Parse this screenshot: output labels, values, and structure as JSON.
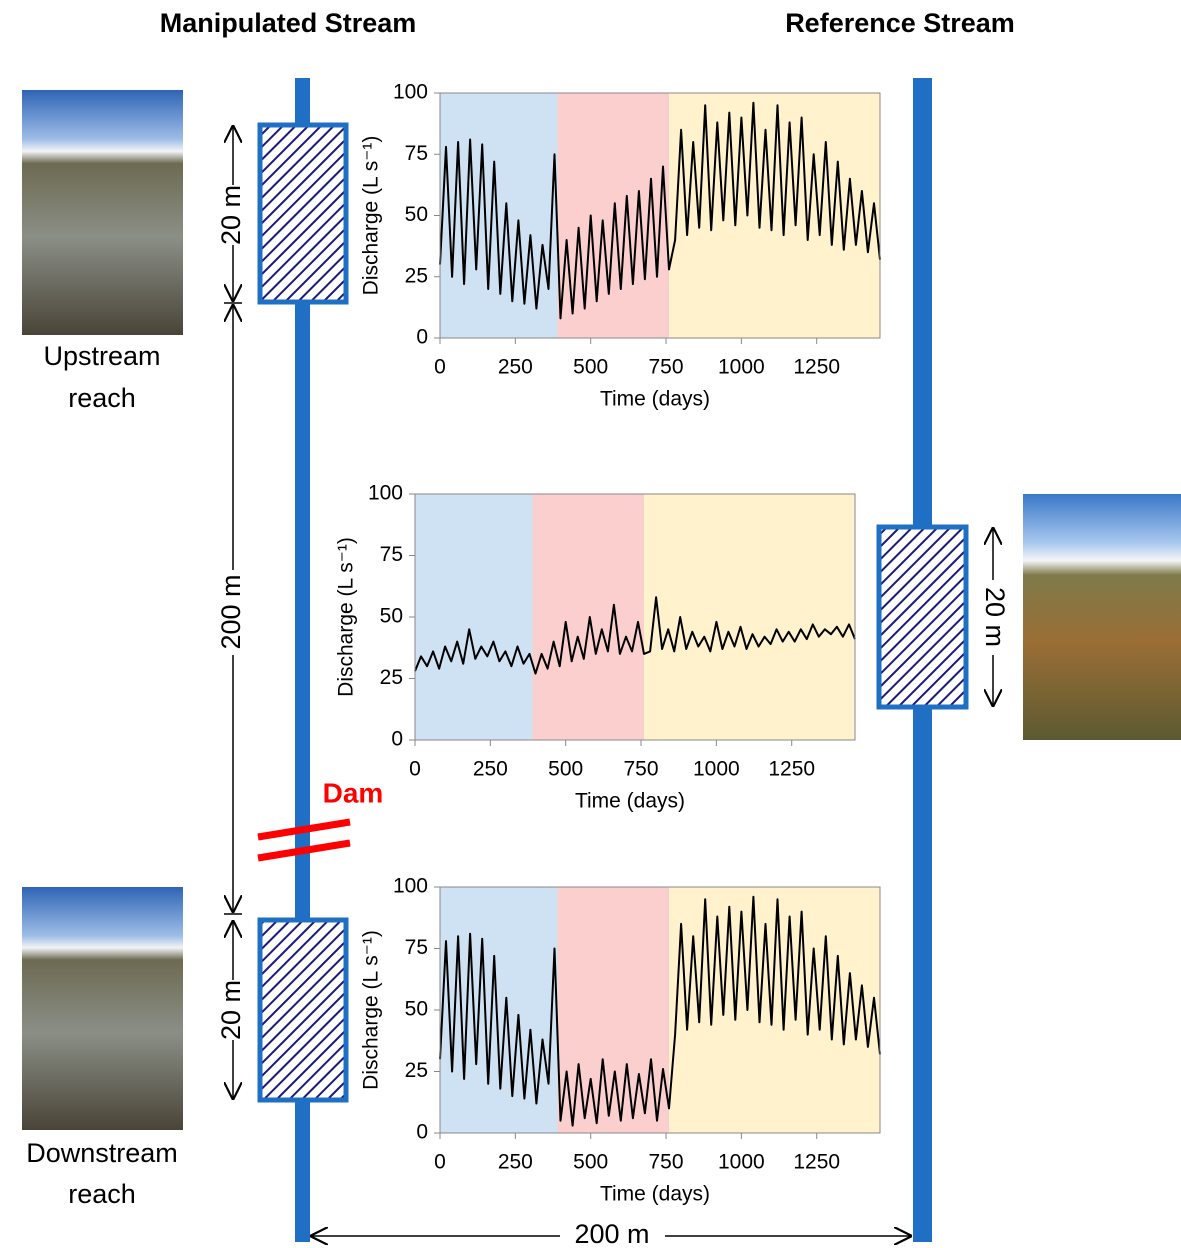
{
  "diagram": {
    "left_heading": "Manipulated Stream",
    "right_heading": "Reference Stream",
    "upstream_label": [
      "Upstream",
      "reach"
    ],
    "downstream_label": [
      "Downstream",
      "reach"
    ],
    "dam_label": "Dam",
    "dimensions": [
      "20 m",
      "200 m",
      "20 m",
      "20 m",
      "200 m"
    ]
  },
  "chart_data": [
    {
      "type": "line",
      "xlabel": "Time (days)",
      "ylabel": "Discharge (L s⁻¹)",
      "xlim": [
        0,
        1460
      ],
      "xticks": [
        0,
        250,
        500,
        750,
        1000,
        1250
      ],
      "ylim": [
        0,
        100
      ],
      "yticks": [
        0,
        25,
        50,
        75,
        100
      ],
      "spans": [
        {
          "start": 0,
          "end": 390,
          "color": "#cfe2f3"
        },
        {
          "start": 390,
          "end": 760,
          "color": "#fccfcf"
        },
        {
          "start": 760,
          "end": 1460,
          "color": "#fff2cc"
        }
      ],
      "x": [
        0,
        20,
        40,
        60,
        80,
        100,
        120,
        140,
        160,
        180,
        200,
        220,
        240,
        260,
        280,
        300,
        320,
        340,
        360,
        380,
        400,
        420,
        440,
        460,
        480,
        500,
        520,
        540,
        560,
        580,
        600,
        620,
        640,
        660,
        680,
        700,
        720,
        740,
        760,
        780,
        800,
        820,
        840,
        860,
        880,
        900,
        920,
        940,
        960,
        980,
        1000,
        1020,
        1040,
        1060,
        1080,
        1100,
        1120,
        1140,
        1160,
        1180,
        1200,
        1220,
        1240,
        1260,
        1280,
        1300,
        1320,
        1340,
        1360,
        1380,
        1400,
        1420,
        1440,
        1460
      ],
      "series": [
        {
          "color": "#000000",
          "values": [
            30,
            78,
            25,
            80,
            22,
            81,
            28,
            79,
            20,
            72,
            18,
            55,
            15,
            48,
            14,
            42,
            12,
            38,
            20,
            75,
            8,
            40,
            10,
            45,
            12,
            50,
            15,
            48,
            18,
            55,
            20,
            58,
            22,
            60,
            24,
            65,
            25,
            70,
            28,
            40,
            85,
            42,
            80,
            45,
            95,
            44,
            88,
            48,
            92,
            46,
            90,
            50,
            96,
            45,
            85,
            44,
            95,
            42,
            88,
            46,
            90,
            40,
            75,
            42,
            80,
            38,
            72,
            36,
            65,
            38,
            60,
            35,
            55,
            32
          ]
        }
      ]
    },
    {
      "type": "line",
      "xlabel": "Time (days)",
      "ylabel": "Discharge (L s⁻¹)",
      "xlim": [
        0,
        1460
      ],
      "xticks": [
        0,
        250,
        500,
        750,
        1000,
        1250
      ],
      "ylim": [
        0,
        100
      ],
      "yticks": [
        0,
        25,
        50,
        75,
        100
      ],
      "spans": [
        {
          "start": 0,
          "end": 390,
          "color": "#cfe2f3"
        },
        {
          "start": 390,
          "end": 760,
          "color": "#fccfcf"
        },
        {
          "start": 760,
          "end": 1460,
          "color": "#fff2cc"
        }
      ],
      "x": [
        0,
        20,
        40,
        60,
        80,
        100,
        120,
        140,
        160,
        180,
        200,
        220,
        240,
        260,
        280,
        300,
        320,
        340,
        360,
        380,
        400,
        420,
        440,
        460,
        480,
        500,
        520,
        540,
        560,
        580,
        600,
        620,
        640,
        660,
        680,
        700,
        720,
        740,
        760,
        780,
        800,
        820,
        840,
        860,
        880,
        900,
        920,
        940,
        960,
        980,
        1000,
        1020,
        1040,
        1060,
        1080,
        1100,
        1120,
        1140,
        1160,
        1180,
        1200,
        1220,
        1240,
        1260,
        1280,
        1300,
        1320,
        1340,
        1360,
        1380,
        1400,
        1420,
        1440,
        1460
      ],
      "series": [
        {
          "color": "#000000",
          "values": [
            28,
            34,
            30,
            36,
            29,
            38,
            32,
            40,
            31,
            45,
            33,
            38,
            34,
            40,
            32,
            36,
            30,
            38,
            31,
            35,
            27,
            35,
            29,
            40,
            30,
            48,
            32,
            42,
            33,
            50,
            35,
            45,
            36,
            55,
            35,
            42,
            36,
            48,
            35,
            36,
            58,
            37,
            45,
            36,
            50,
            37,
            44,
            38,
            42,
            36,
            48,
            37,
            44,
            38,
            46,
            37,
            43,
            38,
            42,
            39,
            45,
            40,
            44,
            40,
            45,
            41,
            47,
            42,
            45,
            43,
            46,
            42,
            47,
            41
          ]
        }
      ]
    },
    {
      "type": "line",
      "xlabel": "Time (days)",
      "ylabel": "Discharge (L s⁻¹)",
      "xlim": [
        0,
        1460
      ],
      "xticks": [
        0,
        250,
        500,
        750,
        1000,
        1250
      ],
      "ylim": [
        0,
        100
      ],
      "yticks": [
        0,
        25,
        50,
        75,
        100
      ],
      "spans": [
        {
          "start": 0,
          "end": 390,
          "color": "#cfe2f3"
        },
        {
          "start": 390,
          "end": 760,
          "color": "#fccfcf"
        },
        {
          "start": 760,
          "end": 1460,
          "color": "#fff2cc"
        }
      ],
      "x": [
        0,
        20,
        40,
        60,
        80,
        100,
        120,
        140,
        160,
        180,
        200,
        220,
        240,
        260,
        280,
        300,
        320,
        340,
        360,
        380,
        400,
        420,
        440,
        460,
        480,
        500,
        520,
        540,
        560,
        580,
        600,
        620,
        640,
        660,
        680,
        700,
        720,
        740,
        760,
        780,
        800,
        820,
        840,
        860,
        880,
        900,
        920,
        940,
        960,
        980,
        1000,
        1020,
        1040,
        1060,
        1080,
        1100,
        1120,
        1140,
        1160,
        1180,
        1200,
        1220,
        1240,
        1260,
        1280,
        1300,
        1320,
        1340,
        1360,
        1380,
        1400,
        1420,
        1440,
        1460
      ],
      "series": [
        {
          "color": "#000000",
          "values": [
            30,
            78,
            25,
            80,
            22,
            81,
            28,
            79,
            20,
            72,
            18,
            55,
            15,
            48,
            14,
            42,
            12,
            38,
            20,
            75,
            5,
            25,
            3,
            28,
            6,
            22,
            4,
            30,
            7,
            25,
            5,
            28,
            6,
            24,
            8,
            30,
            5,
            26,
            10,
            40,
            85,
            42,
            80,
            45,
            95,
            44,
            88,
            48,
            92,
            46,
            90,
            50,
            96,
            45,
            85,
            44,
            95,
            42,
            88,
            46,
            90,
            40,
            75,
            42,
            80,
            38,
            72,
            36,
            65,
            38,
            60,
            35,
            55,
            32
          ]
        }
      ]
    }
  ]
}
